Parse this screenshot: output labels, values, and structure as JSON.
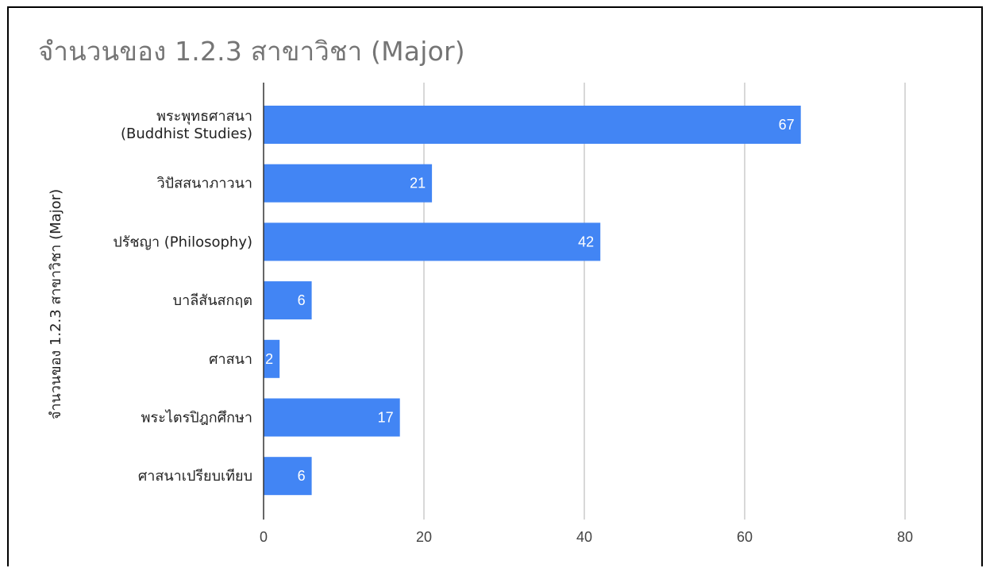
{
  "chart_data": {
    "type": "bar",
    "orientation": "horizontal",
    "title": "จำนวนของ 1.2.3 สาขาวิชา (Major)",
    "xlabel": "",
    "ylabel": "จำนวนของ 1.2.3 สาขาวิชา (Major)",
    "categories": [
      [
        "พระพุทธศาสนา",
        "(Buddhist Studies)"
      ],
      [
        "วิปัสสนาภาวนา"
      ],
      [
        "ปรัชญา (Philosophy)"
      ],
      [
        "บาลีสันสกฤต"
      ],
      [
        "ศาสนา"
      ],
      [
        "พระไตรปิฎกศึกษา"
      ],
      [
        "ศาสนาเปรียบเทียบ"
      ]
    ],
    "values": [
      67,
      21,
      42,
      6,
      2,
      17,
      6
    ],
    "xlim": [
      0,
      80
    ],
    "xticks": [
      0,
      20,
      40,
      60,
      80
    ],
    "grid": true,
    "legend": "none",
    "colors": {
      "bar": "#4285f4",
      "grid": "#cccccc",
      "axis": "#333333"
    }
  }
}
